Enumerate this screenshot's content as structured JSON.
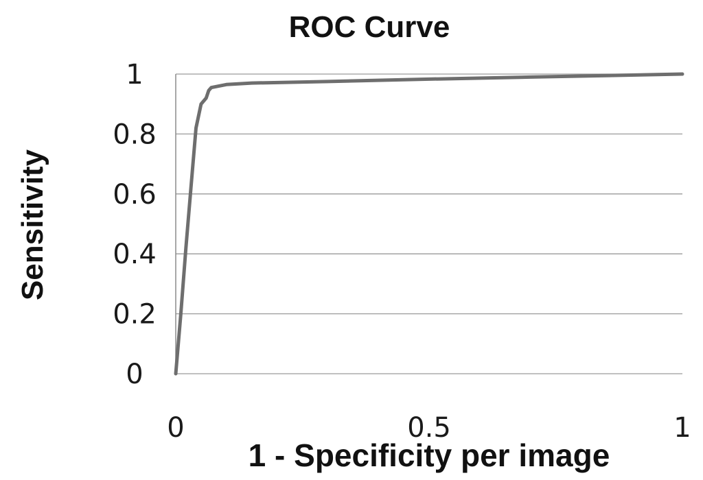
{
  "chart_data": {
    "type": "line",
    "title": "ROC  Curve",
    "xlabel": "1 - Specificity per image",
    "ylabel": "Sensitivity",
    "xlim": [
      0,
      1
    ],
    "ylim": [
      0,
      1
    ],
    "x_ticks": [
      "0",
      "0.5",
      "1"
    ],
    "y_ticks": [
      "0",
      "0.2",
      "0.4",
      "0.6",
      "0.8",
      "1"
    ],
    "grid": "horizontal",
    "legend": "none",
    "series": [
      {
        "color": "#6e6e6e",
        "points": [
          [
            0,
            0
          ],
          [
            0.01,
            0.2
          ],
          [
            0.02,
            0.42
          ],
          [
            0.03,
            0.62
          ],
          [
            0.04,
            0.82
          ],
          [
            0.05,
            0.9
          ],
          [
            0.06,
            0.92
          ],
          [
            0.065,
            0.945
          ],
          [
            0.07,
            0.955
          ],
          [
            0.1,
            0.965
          ],
          [
            0.15,
            0.97
          ],
          [
            0.3,
            0.975
          ],
          [
            0.5,
            0.983
          ],
          [
            0.7,
            0.99
          ],
          [
            0.85,
            0.995
          ],
          [
            1.0,
            1.0
          ]
        ]
      }
    ]
  }
}
